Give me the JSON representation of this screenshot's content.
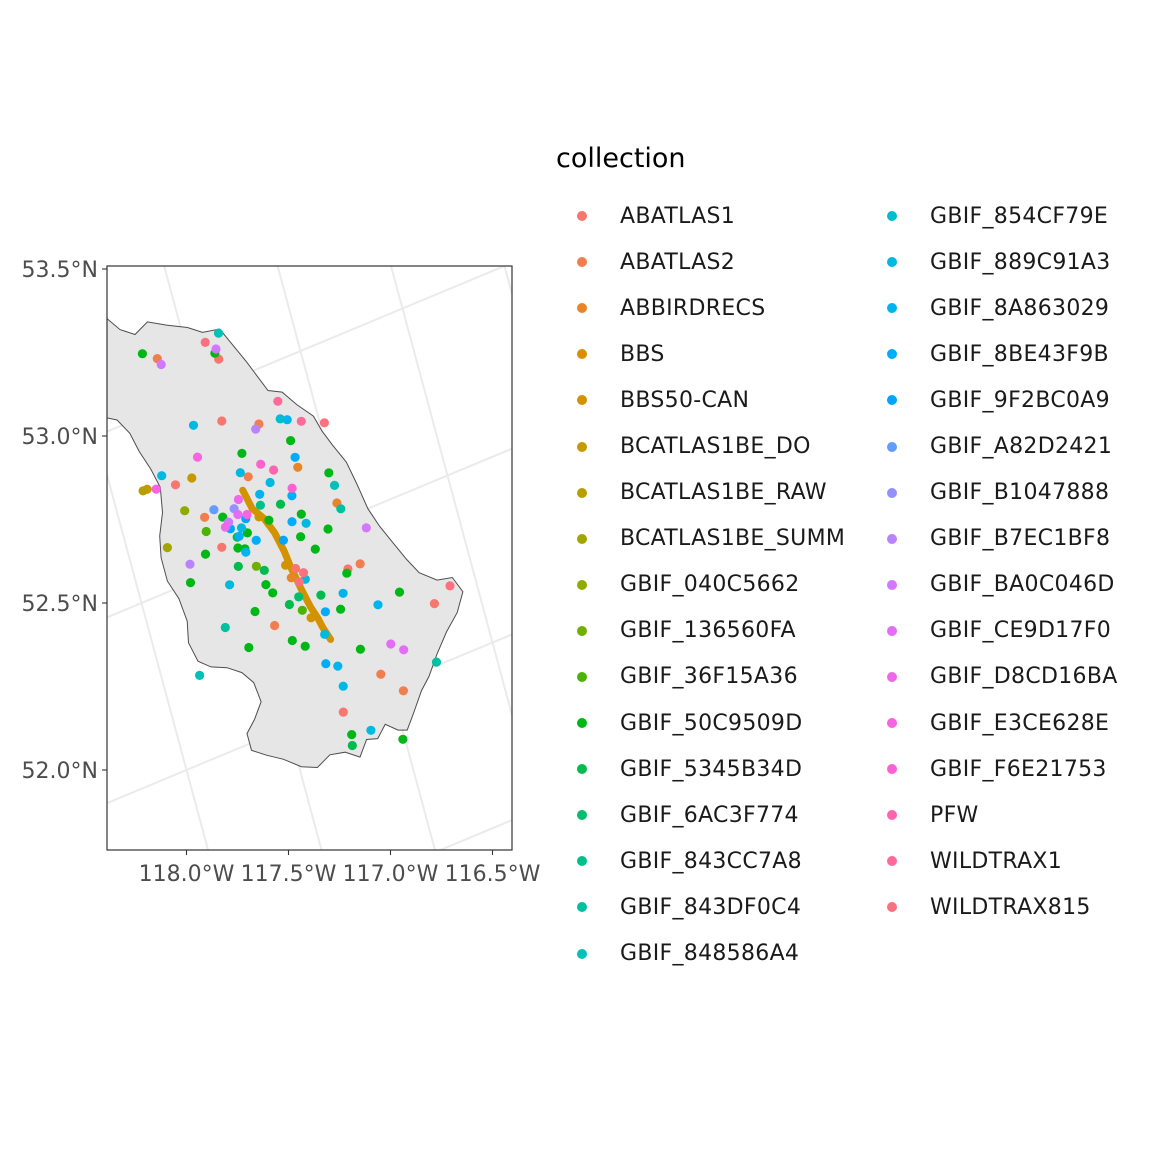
{
  "chart_data": {
    "type": "scatter",
    "title": "",
    "xlabel": "",
    "ylabel": "",
    "xlim": [
      -118.38,
      -116.4
    ],
    "ylim": [
      51.75,
      53.5
    ],
    "x_ticks": [
      {
        "value": -118.0,
        "label": "118.0°W"
      },
      {
        "value": -117.5,
        "label": "117.5°W"
      },
      {
        "value": -117.0,
        "label": "117.0°W"
      },
      {
        "value": -116.5,
        "label": "116.5°W"
      }
    ],
    "y_ticks": [
      {
        "value": 53.5,
        "label": "53.5°N"
      },
      {
        "value": 53.0,
        "label": "53.0°N"
      },
      {
        "value": 52.5,
        "label": "52.5°N"
      },
      {
        "value": 52.0,
        "label": "52.0°N"
      }
    ],
    "boundary": [
      [
        -118.27,
        53.42
      ],
      [
        -118.22,
        53.43
      ],
      [
        -118.13,
        53.38
      ],
      [
        -118.05,
        53.37
      ],
      [
        -117.98,
        53.34
      ],
      [
        -117.92,
        53.36
      ],
      [
        -117.87,
        53.33
      ],
      [
        -117.82,
        53.31
      ],
      [
        -117.77,
        53.26
      ],
      [
        -117.71,
        53.23
      ],
      [
        -117.64,
        53.25
      ],
      [
        -117.56,
        53.22
      ],
      [
        -117.47,
        53.19
      ],
      [
        -117.41,
        53.16
      ],
      [
        -117.33,
        53.15
      ],
      [
        -117.29,
        53.09
      ],
      [
        -117.25,
        53.03
      ],
      [
        -117.22,
        52.98
      ],
      [
        -117.19,
        52.93
      ],
      [
        -117.13,
        52.91
      ],
      [
        -117.08,
        52.86
      ],
      [
        -117.02,
        52.81
      ],
      [
        -117.0,
        52.76
      ],
      [
        -116.97,
        52.71
      ],
      [
        -116.93,
        52.65
      ],
      [
        -116.91,
        52.58
      ],
      [
        -116.89,
        52.5
      ],
      [
        -116.86,
        52.44
      ],
      [
        -116.82,
        52.38
      ],
      [
        -116.78,
        52.32
      ],
      [
        -116.74,
        52.27
      ],
      [
        -116.67,
        52.23
      ],
      [
        -116.6,
        52.22
      ],
      [
        -116.57,
        52.17
      ],
      [
        -116.62,
        52.12
      ],
      [
        -116.69,
        52.08
      ],
      [
        -116.76,
        52.03
      ],
      [
        -116.82,
        51.98
      ],
      [
        -116.87,
        51.95
      ],
      [
        -116.93,
        51.9
      ],
      [
        -116.98,
        51.86
      ],
      [
        -117.02,
        51.87
      ],
      [
        -117.07,
        51.9
      ],
      [
        -117.12,
        51.87
      ],
      [
        -117.17,
        51.88
      ],
      [
        -117.22,
        51.84
      ],
      [
        -117.28,
        51.87
      ],
      [
        -117.35,
        51.88
      ],
      [
        -117.42,
        51.86
      ],
      [
        -117.49,
        51.88
      ],
      [
        -117.56,
        51.92
      ],
      [
        -117.63,
        51.95
      ],
      [
        -117.69,
        51.98
      ],
      [
        -117.69,
        52.03
      ],
      [
        -117.64,
        52.06
      ],
      [
        -117.59,
        52.1
      ],
      [
        -117.6,
        52.16
      ],
      [
        -117.64,
        52.2
      ],
      [
        -117.7,
        52.23
      ],
      [
        -117.77,
        52.25
      ],
      [
        -117.82,
        52.28
      ],
      [
        -117.84,
        52.34
      ],
      [
        -117.82,
        52.4
      ],
      [
        -117.83,
        52.47
      ],
      [
        -117.86,
        52.53
      ],
      [
        -117.86,
        52.6
      ],
      [
        -117.84,
        52.66
      ],
      [
        -117.8,
        52.72
      ],
      [
        -117.78,
        52.79
      ],
      [
        -117.8,
        52.85
      ],
      [
        -117.83,
        52.91
      ],
      [
        -117.85,
        52.97
      ],
      [
        -117.89,
        53.02
      ],
      [
        -117.94,
        53.04
      ],
      [
        -117.99,
        53.05
      ],
      [
        -118.05,
        53.04
      ],
      [
        -118.09,
        53.09
      ],
      [
        -118.14,
        53.14
      ],
      [
        -118.19,
        53.2
      ],
      [
        -118.23,
        53.28
      ],
      [
        -118.27,
        53.35
      ],
      [
        -118.27,
        53.42
      ]
    ],
    "route": [
      [
        -117.42,
        52.69
      ],
      [
        -117.4,
        52.63
      ],
      [
        -117.36,
        52.59
      ],
      [
        -117.33,
        52.54
      ],
      [
        -117.31,
        52.48
      ],
      [
        -117.3,
        52.43
      ],
      [
        -117.28,
        52.36
      ],
      [
        -117.26,
        52.3
      ],
      [
        -117.24,
        52.26
      ],
      [
        -117.23,
        52.23
      ],
      [
        -117.21,
        52.19
      ]
    ],
    "series": [
      {
        "name": "ABATLAS1",
        "color": "#F8766D",
        "points": [
          [
            -117.37,
            53.07
          ],
          [
            -117.43,
            52.9
          ],
          [
            -117.71,
            52.78
          ],
          [
            -117.28,
            52.42
          ],
          [
            -117.05,
            52.36
          ],
          [
            -116.71,
            52.17
          ],
          [
            -117.24,
            51.98
          ],
          [
            -117.58,
            52.56
          ]
        ]
      },
      {
        "name": "ABATLAS2",
        "color": "#F17E4F",
        "points": [
          [
            -117.64,
            53.14
          ],
          [
            -117.27,
            52.85
          ],
          [
            -117.44,
            52.29
          ],
          [
            -116.99,
            52.36
          ],
          [
            -117.03,
            52.04
          ],
          [
            -116.95,
            51.97
          ],
          [
            -117.38,
            52.72
          ],
          [
            -117.62,
            52.66
          ]
        ]
      },
      {
        "name": "ABBIRDRECS",
        "color": "#E88526",
        "points": [
          [
            -117.15,
            52.69
          ],
          [
            -117.02,
            52.55
          ],
          [
            -117.31,
            52.4
          ]
        ]
      },
      {
        "name": "BBS",
        "color": "#DE8C00",
        "points": []
      },
      {
        "name": "BBS50-CAN",
        "color": "#D39200",
        "points": [
          [
            -117.38,
            52.6
          ],
          [
            -117.32,
            52.44
          ],
          [
            -117.27,
            52.27
          ]
        ]
      },
      {
        "name": "BCATLAS1BE_DO",
        "color": "#C69900",
        "points": [
          [
            -117.84,
            52.8
          ],
          [
            -117.63,
            52.78
          ]
        ]
      },
      {
        "name": "BCATLAS1BE_RAW",
        "color": "#B79F00",
        "points": [
          [
            -118.18,
            53.1
          ],
          [
            -117.86,
            52.8
          ]
        ]
      },
      {
        "name": "BCATLAS1BE_SUMM",
        "color": "#A3A500",
        "points": [
          [
            -117.82,
            52.62
          ]
        ]
      },
      {
        "name": "GBIF_040C5662",
        "color": "#8EAB00",
        "points": [
          [
            -117.7,
            52.7
          ]
        ]
      },
      {
        "name": "GBIF_136560FA",
        "color": "#72B000",
        "points": [
          [
            -117.45,
            52.47
          ]
        ]
      },
      {
        "name": "GBIF_36F15A36",
        "color": "#4BB400",
        "points": [
          [
            -117.63,
            52.62
          ],
          [
            -117.3,
            52.3
          ]
        ]
      },
      {
        "name": "GBIF_50C9509D",
        "color": "#00B815",
        "points": [
          [
            -117.97,
            53.25
          ],
          [
            -118.14,
            53.07
          ],
          [
            -117.7,
            53.17
          ],
          [
            -117.38,
            53.09
          ],
          [
            -117.38,
            52.79
          ],
          [
            -117.15,
            52.77
          ],
          [
            -117.02,
            52.64
          ],
          [
            -117.17,
            52.45
          ],
          [
            -117.43,
            52.41
          ],
          [
            -117.51,
            52.35
          ],
          [
            -117.58,
            52.26
          ],
          [
            -117.33,
            52.2
          ],
          [
            -117.09,
            52.13
          ],
          [
            -117.23,
            51.91
          ],
          [
            -117.01,
            51.84
          ],
          [
            -116.85,
            52.24
          ],
          [
            -117.76,
            52.5
          ],
          [
            -117.66,
            52.56
          ],
          [
            -117.54,
            52.64
          ],
          [
            -117.48,
            52.53
          ],
          [
            -117.41,
            52.38
          ],
          [
            -117.22,
            52.5
          ],
          [
            -117.19,
            52.56
          ],
          [
            -117.09,
            52.49
          ],
          [
            -117.06,
            52.35
          ],
          [
            -117.13,
            52.26
          ],
          [
            -117.38,
            52.23
          ],
          [
            -117.51,
            52.54
          ],
          [
            -117.45,
            52.57
          ],
          [
            -117.34,
            52.58
          ]
        ]
      },
      {
        "name": "GBIF_5345B34D",
        "color": "#00BB4E",
        "points": [
          [
            -117.27,
            52.61
          ],
          [
            -117.2,
            52.32
          ],
          [
            -117.35,
            52.33
          ],
          [
            -117.53,
            52.49
          ],
          [
            -117.24,
            51.88
          ],
          [
            -117.5,
            52.57
          ],
          [
            -117.42,
            52.45
          ]
        ]
      },
      {
        "name": "GBIF_6AC3F774",
        "color": "#00BE6F",
        "points": [
          [
            -117.3,
            52.34
          ]
        ]
      },
      {
        "name": "GBIF_843CC7A8",
        "color": "#00C089",
        "points": [
          [
            -117.36,
            52.63
          ]
        ]
      },
      {
        "name": "GBIF_843DF0C4",
        "color": "#00C0A2",
        "points": [
          [
            -117.66,
            52.34
          ],
          [
            -117.01,
            52.53
          ],
          [
            -116.77,
            52.01
          ]
        ]
      },
      {
        "name": "GBIF_848586A4",
        "color": "#00C0B8",
        "points": [
          [
            -117.92,
            53.2
          ],
          [
            -118.05,
            53.09
          ],
          [
            -117.34,
            53.14
          ],
          [
            -117.83,
            52.24
          ],
          [
            -117.01,
            52.6
          ]
        ]
      },
      {
        "name": "GBIF_854CF79E",
        "color": "#00BDCD",
        "points": [
          [
            -117.17,
            52.84
          ]
        ]
      },
      {
        "name": "GBIF_889C91A3",
        "color": "#00B9E0",
        "points": [
          [
            -117.56,
            52.92
          ],
          [
            -117.76,
            52.82
          ],
          [
            -117.41,
            52.74
          ],
          [
            -117.29,
            52.68
          ],
          [
            -117.18,
            52.53
          ],
          [
            -117.25,
            52.38
          ],
          [
            -117.23,
            52.21
          ],
          [
            -117.21,
            52.05
          ],
          [
            -117.14,
            51.9
          ],
          [
            -117.59,
            52.45
          ],
          [
            -117.47,
            52.59
          ]
        ]
      },
      {
        "name": "GBIF_8A863029",
        "color": "#00B4EF",
        "points": [
          [
            -117.1,
            52.3
          ],
          [
            -116.96,
            52.23
          ],
          [
            -117.21,
            52.11
          ],
          [
            -117.48,
            52.52
          ],
          [
            -117.35,
            52.66
          ],
          [
            -117.14,
            52.83
          ]
        ]
      },
      {
        "name": "GBIF_8BE43F9B",
        "color": "#00ADFA",
        "points": [
          [
            -117.49,
            52.57
          ],
          [
            -117.42,
            52.54
          ],
          [
            -117.24,
            52.55
          ],
          [
            -117.21,
            52.62
          ],
          [
            -117.15,
            52.72
          ],
          [
            -117.2,
            52.27
          ],
          [
            -117.26,
            52.13
          ]
        ]
      },
      {
        "name": "GBIF_9F2BC0A9",
        "color": "#00A5FF",
        "points": [
          [
            -117.44,
            52.61
          ],
          [
            -117.52,
            52.6
          ],
          [
            -117.3,
            52.51
          ]
        ]
      },
      {
        "name": "GBIF_A82D2421",
        "color": "#619CFF",
        "points": [
          [
            -117.57,
            52.67
          ]
        ]
      },
      {
        "name": "GBIF_B1047888",
        "color": "#9590FF",
        "points": [
          [
            -117.48,
            52.65
          ]
        ]
      },
      {
        "name": "GBIF_B7EC1BF8",
        "color": "#B983FF",
        "points": [
          [
            -117.74,
            52.55
          ],
          [
            -117.29,
            52.84
          ]
        ]
      },
      {
        "name": "GBIF_BA0C046D",
        "color": "#D277FF",
        "points": [
          [
            -117.63,
            53.12
          ],
          [
            -117.37,
            53.1
          ],
          [
            -116.92,
            52.45
          ],
          [
            -117.52,
            52.62
          ]
        ]
      },
      {
        "name": "GBIF_CE9D17F0",
        "color": "#E46CF6",
        "points": [
          [
            -117.47,
            52.63
          ],
          [
            -116.95,
            52.11
          ],
          [
            -116.9,
            52.08
          ]
        ]
      },
      {
        "name": "GBIF_D8CD16BA",
        "color": "#EF67EB",
        "points": [
          [
            -117.54,
            52.61
          ],
          [
            -117.45,
            52.67
          ]
        ]
      },
      {
        "name": "GBIF_E3CE628E",
        "color": "#F863DF",
        "points": [
          [
            -117.43,
            52.62
          ],
          [
            -117.8,
            52.79
          ],
          [
            -117.58,
            52.83
          ]
        ]
      },
      {
        "name": "GBIF_F6E21753",
        "color": "#FD61D1",
        "points": [
          [
            -117.2,
            52.64
          ],
          [
            -117.31,
            52.74
          ]
        ]
      },
      {
        "name": "PFW",
        "color": "#FF64B0",
        "points": [
          [
            -117.26,
            52.71
          ]
        ]
      },
      {
        "name": "WILDTRAX1",
        "color": "#FF6A98",
        "points": [
          [
            -117.16,
            52.89
          ],
          [
            -117.08,
            52.81
          ]
        ]
      },
      {
        "name": "WILDTRAX815",
        "color": "#FC717F",
        "points": [
          [
            -117.41,
            53.13
          ],
          [
            -117.28,
            52.38
          ],
          [
            -116.98,
            52.78
          ],
          [
            -116.62,
            52.2
          ],
          [
            -117.25,
            52.4
          ]
        ]
      }
    ]
  },
  "legend": {
    "title": "collection",
    "items": [
      {
        "label": "ABATLAS1",
        "color": "#F8766D"
      },
      {
        "label": "ABATLAS2",
        "color": "#F17E4F"
      },
      {
        "label": "ABBIRDRECS",
        "color": "#E88526"
      },
      {
        "label": "BBS",
        "color": "#DE8C00"
      },
      {
        "label": "BBS50-CAN",
        "color": "#D39200"
      },
      {
        "label": "BCATLAS1BE_DO",
        "color": "#C69900"
      },
      {
        "label": "BCATLAS1BE_RAW",
        "color": "#B79F00"
      },
      {
        "label": "BCATLAS1BE_SUMM",
        "color": "#A3A500"
      },
      {
        "label": "GBIF_040C5662",
        "color": "#8EAB00"
      },
      {
        "label": "GBIF_136560FA",
        "color": "#72B000"
      },
      {
        "label": "GBIF_36F15A36",
        "color": "#4BB400"
      },
      {
        "label": "GBIF_50C9509D",
        "color": "#00B815"
      },
      {
        "label": "GBIF_5345B34D",
        "color": "#00BB4E"
      },
      {
        "label": "GBIF_6AC3F774",
        "color": "#00BE6F"
      },
      {
        "label": "GBIF_843CC7A8",
        "color": "#00C089"
      },
      {
        "label": "GBIF_843DF0C4",
        "color": "#00C0A2"
      },
      {
        "label": "GBIF_848586A4",
        "color": "#00C0B8"
      },
      {
        "label": "GBIF_854CF79E",
        "color": "#00BDCD"
      },
      {
        "label": "GBIF_889C91A3",
        "color": "#00B9E0"
      },
      {
        "label": "GBIF_8A863029",
        "color": "#00B4EF"
      },
      {
        "label": "GBIF_8BE43F9B",
        "color": "#00ADFA"
      },
      {
        "label": "GBIF_9F2BC0A9",
        "color": "#00A5FF"
      },
      {
        "label": "GBIF_A82D2421",
        "color": "#619CFF"
      },
      {
        "label": "GBIF_B1047888",
        "color": "#9590FF"
      },
      {
        "label": "GBIF_B7EC1BF8",
        "color": "#B983FF"
      },
      {
        "label": "GBIF_BA0C046D",
        "color": "#D277FF"
      },
      {
        "label": "GBIF_CE9D17F0",
        "color": "#E46CF6"
      },
      {
        "label": "GBIF_D8CD16BA",
        "color": "#EF67EB"
      },
      {
        "label": "GBIF_E3CE628E",
        "color": "#F863DF"
      },
      {
        "label": "GBIF_F6E21753",
        "color": "#FD61D1"
      },
      {
        "label": "PFW",
        "color": "#FF64B0"
      },
      {
        "label": "WILDTRAX1",
        "color": "#FF6A98"
      },
      {
        "label": "WILDTRAX815",
        "color": "#FC717F"
      }
    ]
  },
  "colors": {
    "region_fill": "#e6e6e6",
    "region_stroke": "#4d4d4d",
    "route_color": "#D39200",
    "graticule": "#ebebeb",
    "panel_border": "#333333"
  }
}
